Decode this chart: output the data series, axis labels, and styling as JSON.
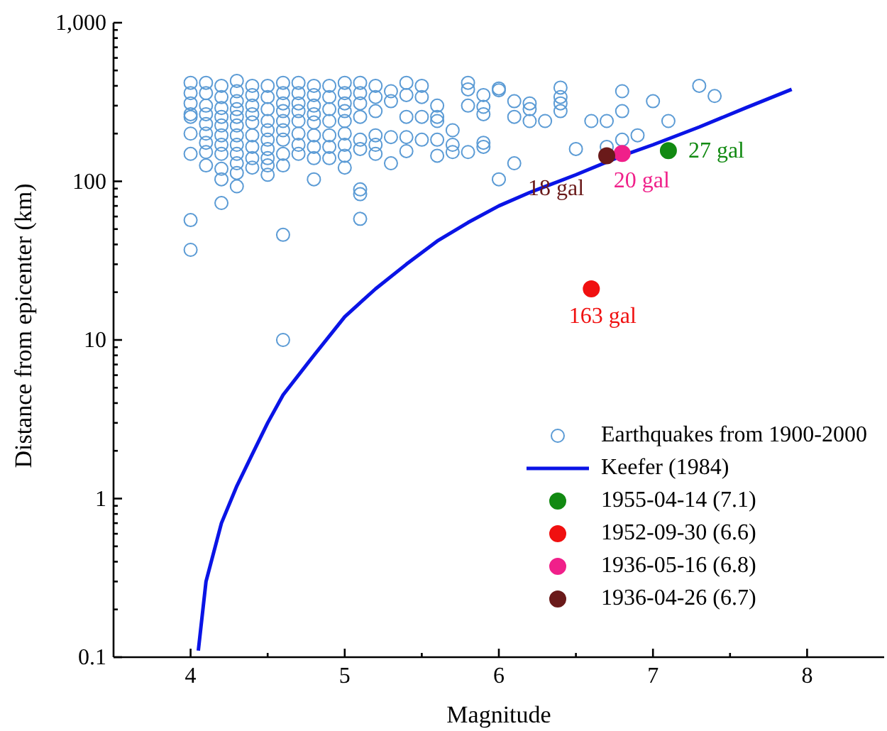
{
  "chart_data": {
    "type": "scatter",
    "xlabel": "Magnitude",
    "ylabel": "Distance from epicenter (km)",
    "log": "y",
    "xlim": [
      3.5,
      8.5
    ],
    "ylim": [
      0.1,
      1000
    ],
    "xticks": [
      4,
      {
        "value": 4.5,
        "label": null
      },
      5,
      {
        "value": 5.5,
        "label": null
      },
      6,
      {
        "value": 6.5,
        "label": null
      },
      7,
      {
        "value": 7.5,
        "label": null
      },
      8
    ],
    "yticks": [
      0.1,
      {
        "value": 0.2,
        "label": null
      },
      {
        "value": 0.3,
        "label": null
      },
      {
        "value": 0.4,
        "label": null
      },
      {
        "value": 0.5,
        "label": null
      },
      {
        "value": 0.6,
        "label": null
      },
      {
        "value": 0.7,
        "label": null
      },
      {
        "value": 0.8,
        "label": null
      },
      {
        "value": 0.9,
        "label": null
      },
      1,
      {
        "value": 2,
        "label": null
      },
      {
        "value": 3,
        "label": null
      },
      {
        "value": 4,
        "label": null
      },
      {
        "value": 5,
        "label": null
      },
      {
        "value": 6,
        "label": null
      },
      {
        "value": 7,
        "label": null
      },
      {
        "value": 8,
        "label": null
      },
      {
        "value": 9,
        "label": null
      },
      10,
      {
        "value": 20,
        "label": null
      },
      {
        "value": 30,
        "label": null
      },
      {
        "value": 40,
        "label": null
      },
      {
        "value": 50,
        "label": null
      },
      {
        "value": 60,
        "label": null
      },
      {
        "value": 70,
        "label": null
      },
      {
        "value": 80,
        "label": null
      },
      {
        "value": 90,
        "label": null
      },
      100,
      {
        "value": 200,
        "label": null
      },
      {
        "value": 300,
        "label": null
      },
      {
        "value": 400,
        "label": null
      },
      {
        "value": 500,
        "label": null
      },
      {
        "value": 600,
        "label": null
      },
      {
        "value": 700,
        "label": null
      },
      {
        "value": 800,
        "label": null
      },
      {
        "value": 900,
        "label": null
      },
      {
        "value": 1000,
        "label": "1,000"
      }
    ],
    "legend": "bottom right",
    "series": [
      {
        "name": "Earthquakes from 1900-2000",
        "marker": "circle",
        "color": "#5b9bd5",
        "x": [
          4,
          4,
          4,
          4,
          4,
          4,
          4,
          4,
          4,
          4.1,
          4.1,
          4.1,
          4.1,
          4.1,
          4.1,
          4.1,
          4.1,
          4.1,
          4.2,
          4.2,
          4.2,
          4.2,
          4.2,
          4.2,
          4.2,
          4.2,
          4.2,
          4.2,
          4.2,
          4.3,
          4.3,
          4.3,
          4.3,
          4.3,
          4.3,
          4.3,
          4.3,
          4.3,
          4.3,
          4.3,
          4.3,
          4.4,
          4.4,
          4.4,
          4.4,
          4.4,
          4.4,
          4.4,
          4.4,
          4.4,
          4.5,
          4.5,
          4.5,
          4.5,
          4.5,
          4.5,
          4.5,
          4.5,
          4.5,
          4.5,
          4.6,
          4.6,
          4.6,
          4.6,
          4.6,
          4.6,
          4.6,
          4.6,
          4.6,
          4.6,
          4.6,
          4.7,
          4.7,
          4.7,
          4.7,
          4.7,
          4.7,
          4.7,
          4.7,
          4.8,
          4.8,
          4.8,
          4.8,
          4.8,
          4.8,
          4.8,
          4.8,
          4.8,
          4.9,
          4.9,
          4.9,
          4.9,
          4.9,
          4.9,
          4.9,
          5,
          5,
          5,
          5,
          5,
          5,
          5,
          5,
          5,
          5.1,
          5.1,
          5.1,
          5.1,
          5.1,
          5.1,
          5.1,
          5.1,
          5.1,
          5.2,
          5.2,
          5.2,
          5.2,
          5.2,
          5.2,
          5.3,
          5.3,
          5.3,
          5.3,
          5.4,
          5.4,
          5.4,
          5.4,
          5.4,
          5.5,
          5.5,
          5.5,
          5.5,
          5.6,
          5.6,
          5.6,
          5.6,
          5.6,
          5.7,
          5.7,
          5.7,
          5.8,
          5.8,
          5.8,
          5.8,
          5.9,
          5.9,
          5.9,
          5.9,
          5.9,
          6,
          6,
          6,
          6.1,
          6.1,
          6.1,
          6.2,
          6.2,
          6.2,
          6.3,
          6.4,
          6.4,
          6.4,
          6.4,
          6.5,
          6.6,
          6.7,
          6.7,
          6.8,
          6.8,
          6.8,
          6.9,
          7,
          7.1,
          7.3,
          7.4
        ],
        "values": [
          418,
          360,
          310,
          265,
          255,
          200,
          149,
          57,
          37,
          418,
          360,
          300,
          265,
          230,
          200,
          175,
          153,
          126,
          400,
          340,
          290,
          255,
          225,
          195,
          170,
          149,
          120,
          103,
          73,
          430,
          370,
          320,
          285,
          255,
          225,
          195,
          170,
          149,
          130,
          113,
          93,
          400,
          350,
          300,
          265,
          235,
          195,
          165,
          140,
          122,
          400,
          340,
          285,
          240,
          210,
          183,
          160,
          140,
          126,
          110,
          418,
          360,
          310,
          277,
          240,
          210,
          183,
          149,
          126,
          46,
          10,
          418,
          360,
          310,
          277,
          240,
          200,
          170,
          149,
          400,
          350,
          300,
          265,
          235,
          195,
          165,
          140,
          103,
          400,
          340,
          285,
          240,
          195,
          165,
          140,
          418,
          360,
          310,
          277,
          240,
          200,
          170,
          145,
          122,
          418,
          360,
          310,
          255,
          183,
          160,
          89,
          83,
          58,
          400,
          340,
          277,
          195,
          170,
          149,
          370,
          320,
          190,
          130,
          418,
          350,
          255,
          190,
          155,
          400,
          340,
          255,
          183,
          300,
          255,
          240,
          183,
          145,
          210,
          170,
          153,
          418,
          380,
          300,
          153,
          350,
          295,
          265,
          175,
          165,
          385,
          375,
          103,
          320,
          255,
          130,
          310,
          285,
          240,
          240,
          390,
          340,
          310,
          277,
          160,
          240,
          240,
          165,
          370,
          277,
          183,
          195,
          320,
          240,
          400,
          345
        ]
      },
      {
        "name": "Keefer (1984)",
        "type": "line",
        "marker": "none",
        "color": "#0a14e6",
        "x": [
          4.05,
          4.1,
          4.2,
          4.3,
          4.4,
          4.5,
          4.6,
          4.8,
          5,
          5.2,
          5.4,
          5.6,
          5.8,
          6,
          6.2,
          6.5,
          6.8,
          7,
          7.3,
          7.6,
          7.9
        ],
        "values": [
          0.11,
          0.3,
          0.7,
          1.2,
          1.9,
          3,
          4.5,
          8,
          14,
          21,
          30,
          42,
          55,
          70,
          85,
          110,
          145,
          170,
          220,
          290,
          380
        ]
      },
      {
        "name": "1955-04-14 (7.1)",
        "marker": "circle",
        "color": "#128a12",
        "x": [
          7.1
        ],
        "values": [
          156
        ]
      },
      {
        "name": "1952-09-30 (6.6)",
        "marker": "circle",
        "color": "#f01010",
        "x": [
          6.6
        ],
        "values": [
          21
        ]
      },
      {
        "name": "1936-05-16 (6.8)",
        "marker": "circle",
        "color": "#f0208a",
        "x": [
          6.8
        ],
        "values": [
          150
        ]
      },
      {
        "name": "1936-04-26 (6.7)",
        "marker": "circle",
        "color": "#6a1a1a",
        "x": [
          6.7
        ],
        "values": [
          145
        ]
      }
    ],
    "annotations": [
      {
        "text": "27 gal",
        "x": 7.1,
        "y": 156
      },
      {
        "text": "163 gal",
        "x": 6.6,
        "y": 21
      },
      {
        "text": "20 gal",
        "x": 6.8,
        "y": 150
      },
      {
        "text": "18 gal",
        "x": 6.7,
        "y": 145
      }
    ]
  }
}
